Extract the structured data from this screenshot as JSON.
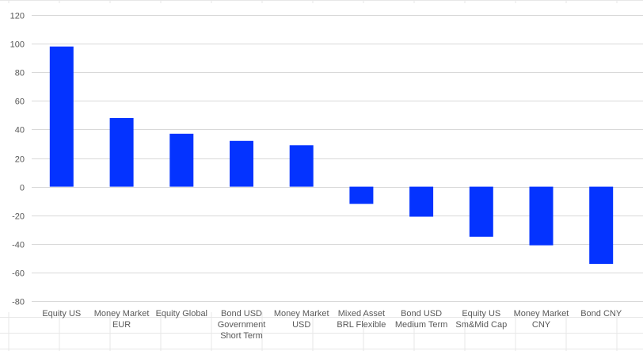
{
  "chart_data": {
    "type": "bar",
    "categories": [
      [
        "Equity US"
      ],
      [
        "Money Market",
        "EUR"
      ],
      [
        "Equity Global"
      ],
      [
        "Bond USD",
        "Government",
        "Short Term"
      ],
      [
        "Money Market",
        "USD"
      ],
      [
        "Mixed Asset",
        "BRL Flexible"
      ],
      [
        "Bond USD",
        "Medium Term"
      ],
      [
        "Equity US",
        "Sm&Mid Cap"
      ],
      [
        "Money Market",
        "CNY"
      ],
      [
        "Bond CNY"
      ]
    ],
    "values": [
      98,
      48,
      37,
      32,
      29,
      -12,
      -21,
      -35,
      -41,
      -54
    ],
    "ylim": [
      -80,
      120
    ],
    "yticks": [
      "120",
      "100",
      "80",
      "60",
      "40",
      "20",
      "0",
      "-20",
      "-40",
      "-60",
      "-80"
    ],
    "grid": true,
    "colors": {
      "bar": "#0433ff",
      "grid": "#d9d9d9",
      "background_grid": "#e7e7e7",
      "text": "#595959"
    }
  }
}
